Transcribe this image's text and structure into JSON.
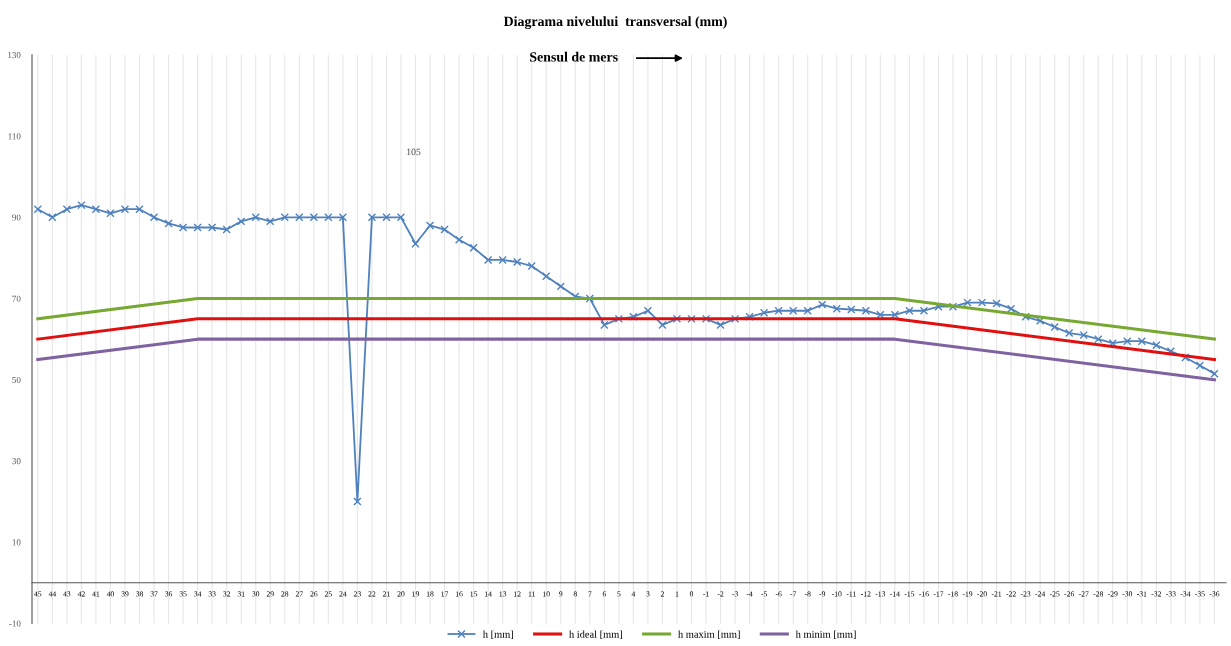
{
  "chart_data": {
    "type": "line",
    "title": "Diagrama nivelului  transversal (mm)",
    "subtitle": "Sensul de mers",
    "annotations": [
      "105"
    ],
    "xlim": [
      45.4,
      -36.8
    ],
    "xticks": [
      45,
      44,
      43,
      42,
      41,
      40,
      39,
      38,
      37,
      36,
      35,
      34,
      33,
      32,
      31,
      30,
      29,
      28,
      27,
      26,
      25,
      24,
      23,
      22,
      21,
      20,
      19,
      18,
      17,
      16,
      15,
      14,
      13,
      12,
      11,
      10,
      9,
      8,
      7,
      6,
      5,
      4,
      3,
      2,
      1,
      0,
      -1,
      -2,
      -3,
      -4,
      -5,
      -6,
      -7,
      -8,
      -9,
      -10,
      -11,
      -12,
      -13,
      -14,
      -15,
      -16,
      -17,
      -18,
      -19,
      -20,
      -21,
      -22,
      -23,
      -24,
      -25,
      -26,
      -27,
      -28,
      -29,
      -30,
      -31,
      -32,
      -33,
      -34,
      -35,
      -36
    ],
    "ylim": [
      -10,
      130
    ],
    "yticks": [
      -10,
      10,
      30,
      50,
      70,
      90,
      110,
      130
    ],
    "grid": "x",
    "legend": "bottom",
    "series": [
      {
        "name": "h [mm]",
        "color": "#4f81bd",
        "marker": "cross",
        "x": [
          45,
          44,
          43,
          42,
          41,
          40,
          39,
          38,
          37,
          36,
          35,
          34,
          33,
          32,
          31,
          30,
          29,
          28,
          27,
          26,
          25,
          24,
          23,
          22,
          21,
          20,
          19,
          18,
          17,
          16,
          15,
          14,
          13,
          12,
          11,
          10,
          9,
          8,
          7,
          6,
          5,
          4,
          3,
          2,
          1,
          0,
          -1,
          -2,
          -3,
          -4,
          -5,
          -6,
          -7,
          -8,
          -9,
          -10,
          -11,
          -12,
          -13,
          -14,
          -15,
          -16,
          -17,
          -18,
          -19,
          -20,
          -21,
          -22,
          -23,
          -24,
          -25,
          -26,
          -27,
          -28,
          -29,
          -30,
          -31,
          -32,
          -33,
          -34,
          -35,
          -36
        ],
        "values": [
          92,
          90,
          92,
          93,
          92,
          91,
          92,
          92,
          90,
          88.5,
          87.5,
          87.5,
          87.5,
          87,
          89,
          90,
          89,
          90,
          90,
          90,
          90,
          90,
          20,
          90,
          90,
          90,
          83.5,
          88,
          87,
          84.5,
          82.5,
          79.5,
          79.5,
          79,
          78,
          75.5,
          73,
          70.5,
          70,
          63.5,
          65,
          65.5,
          67,
          63.5,
          65,
          65,
          65,
          63.5,
          65,
          65.5,
          66.5,
          67,
          67,
          67,
          68.5,
          67.5,
          67.3,
          67,
          66,
          66,
          67,
          67,
          68,
          68,
          69,
          69,
          68.8,
          67.5,
          65.5,
          64.5,
          63,
          61.5,
          61,
          60,
          59,
          59.5,
          59.5,
          58.5,
          57,
          55.5,
          53.5,
          51.5
        ]
      },
      {
        "name": "h ideal [mm]",
        "color": "#e01010",
        "marker": "none",
        "x": [
          45,
          34,
          -14,
          -36
        ],
        "values": [
          60,
          65,
          65,
          55
        ]
      },
      {
        "name": "h maxim [mm]",
        "color": "#77a832",
        "marker": "none",
        "x": [
          45,
          34,
          -14,
          -36
        ],
        "values": [
          65,
          70,
          70,
          60
        ]
      },
      {
        "name": "h minim [mm]",
        "color": "#7f63a0",
        "marker": "none",
        "x": [
          45,
          34,
          -14,
          -36
        ],
        "values": [
          55,
          60,
          60,
          50
        ]
      }
    ]
  }
}
